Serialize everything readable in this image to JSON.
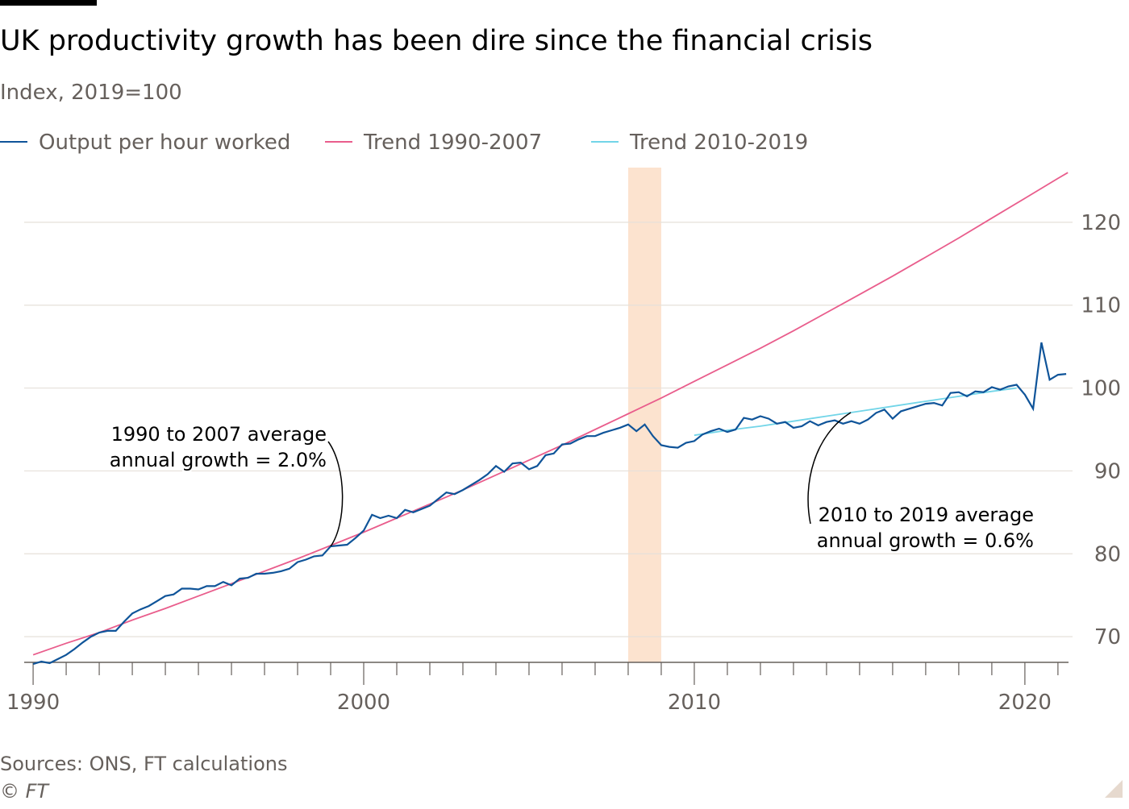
{
  "chart_data": {
    "type": "line",
    "title": "UK productivity growth has been dire since the financial crisis",
    "subtitle": "Index, 2019=100",
    "source": "Sources: ONS, FT calculations",
    "credit": "© FT",
    "xlim": [
      1989.73,
      2021.32
    ],
    "ylim": [
      66.9,
      126.6
    ],
    "xticks": [
      1990,
      2000,
      2010,
      2020
    ],
    "x_minor_ticks": [
      1991,
      1992,
      1993,
      1994,
      1995,
      1996,
      1997,
      1998,
      1999,
      2001,
      2002,
      2003,
      2004,
      2005,
      2006,
      2007,
      2008,
      2009,
      2011,
      2012,
      2013,
      2014,
      2015,
      2016,
      2017,
      2018,
      2019,
      2021
    ],
    "yticks": [
      70,
      80,
      90,
      100,
      110,
      120
    ],
    "grid": true,
    "shaded_span": [
      2008,
      2009
    ],
    "shaded_color": "#fce3cf",
    "annotations": [
      [
        "1990 to 2007 average",
        "annual growth = 2.0%"
      ],
      [
        "2010 to 2019 average",
        "annual growth = 0.6%"
      ]
    ],
    "series": [
      {
        "name": "Output per hour worked",
        "color": "#0f5499",
        "x": [
          1990,
          1990.25,
          1990.5,
          1990.75,
          1991,
          1991.25,
          1991.5,
          1991.75,
          1992,
          1992.25,
          1992.5,
          1992.75,
          1993,
          1993.25,
          1993.5,
          1993.75,
          1994,
          1994.25,
          1994.5,
          1994.75,
          1995,
          1995.25,
          1995.5,
          1995.75,
          1996,
          1996.25,
          1996.5,
          1996.75,
          1997,
          1997.25,
          1997.5,
          1997.75,
          1998,
          1998.25,
          1998.5,
          1998.75,
          1999,
          1999.25,
          1999.5,
          1999.75,
          2000,
          2000.25,
          2000.5,
          2000.75,
          2001,
          2001.25,
          2001.5,
          2001.75,
          2002,
          2002.25,
          2002.5,
          2002.75,
          2003,
          2003.25,
          2003.5,
          2003.75,
          2004,
          2004.25,
          2004.5,
          2004.75,
          2005,
          2005.25,
          2005.5,
          2005.75,
          2006,
          2006.25,
          2006.5,
          2006.75,
          2007,
          2007.25,
          2007.5,
          2007.75,
          2008,
          2008.25,
          2008.5,
          2008.75,
          2009,
          2009.25,
          2009.5,
          2009.75,
          2010,
          2010.25,
          2010.5,
          2010.75,
          2011,
          2011.25,
          2011.5,
          2011.75,
          2012,
          2012.25,
          2012.5,
          2012.75,
          2013,
          2013.25,
          2013.5,
          2013.75,
          2014,
          2014.25,
          2014.5,
          2014.75,
          2015,
          2015.25,
          2015.5,
          2015.75,
          2016,
          2016.25,
          2016.5,
          2016.75,
          2017,
          2017.25,
          2017.5,
          2017.75,
          2018,
          2018.25,
          2018.5,
          2018.75,
          2019,
          2019.25,
          2019.5,
          2019.75,
          2020,
          2020.25,
          2020.5,
          2020.75,
          2021,
          2021.25
        ],
        "values": [
          66.7,
          67.0,
          66.8,
          67.3,
          67.8,
          68.5,
          69.3,
          70.0,
          70.5,
          70.7,
          70.7,
          71.8,
          72.8,
          73.3,
          73.7,
          74.3,
          74.9,
          75.1,
          75.8,
          75.8,
          75.7,
          76.1,
          76.1,
          76.6,
          76.2,
          77.0,
          77.1,
          77.6,
          77.6,
          77.7,
          77.9,
          78.2,
          79.0,
          79.3,
          79.7,
          79.8,
          80.9,
          81.0,
          81.1,
          81.9,
          82.8,
          84.7,
          84.3,
          84.6,
          84.3,
          85.3,
          85.0,
          85.4,
          85.8,
          86.6,
          87.4,
          87.2,
          87.7,
          88.3,
          88.9,
          89.6,
          90.6,
          89.9,
          90.9,
          91.0,
          90.2,
          90.6,
          91.9,
          92.1,
          93.2,
          93.3,
          93.8,
          94.2,
          94.2,
          94.6,
          94.9,
          95.2,
          95.6,
          94.8,
          95.6,
          94.2,
          93.1,
          92.9,
          92.8,
          93.4,
          93.6,
          94.4,
          94.8,
          95.1,
          94.7,
          95.0,
          96.4,
          96.2,
          96.6,
          96.3,
          95.7,
          95.9,
          95.2,
          95.4,
          96.0,
          95.5,
          95.9,
          96.1,
          95.7,
          96.0,
          95.7,
          96.2,
          97.0,
          97.4,
          96.3,
          97.2,
          97.5,
          97.8,
          98.1,
          98.2,
          97.9,
          99.4,
          99.5,
          99.0,
          99.6,
          99.5,
          100.1,
          99.8,
          100.2,
          100.4,
          99.2,
          97.5,
          105.5,
          101.0,
          101.6,
          101.7
        ]
      },
      {
        "name": "Trend 1990-2007",
        "color": "#e95d8c",
        "x": [
          1990,
          1991,
          1992,
          1993,
          1994,
          1995,
          1996,
          1997,
          1998,
          1999,
          2000,
          2001,
          2002,
          2003,
          2004,
          2005,
          2006,
          2007,
          2008,
          2009,
          2010,
          2011,
          2012,
          2013,
          2014,
          2015,
          2016,
          2017,
          2018,
          2019,
          2020,
          2021,
          2021.3
        ],
        "values": [
          67.8,
          69.2,
          70.5,
          72.0,
          73.4,
          74.9,
          76.4,
          77.9,
          79.4,
          81.0,
          82.6,
          84.3,
          86.0,
          87.7,
          89.5,
          91.3,
          93.1,
          95.0,
          96.9,
          98.8,
          100.8,
          102.8,
          104.8,
          106.9,
          109.1,
          111.3,
          113.5,
          115.8,
          118.1,
          120.5,
          122.9,
          125.3,
          126.0
        ]
      },
      {
        "name": "Trend 2010-2019",
        "color": "#72d5e8",
        "x": [
          2010,
          2011,
          2012,
          2013,
          2014,
          2015,
          2016,
          2017,
          2018,
          2019,
          2019.75
        ],
        "values": [
          94.3,
          94.9,
          95.4,
          96.0,
          96.6,
          97.2,
          97.8,
          98.4,
          99.0,
          99.6,
          100.0
        ]
      }
    ]
  }
}
